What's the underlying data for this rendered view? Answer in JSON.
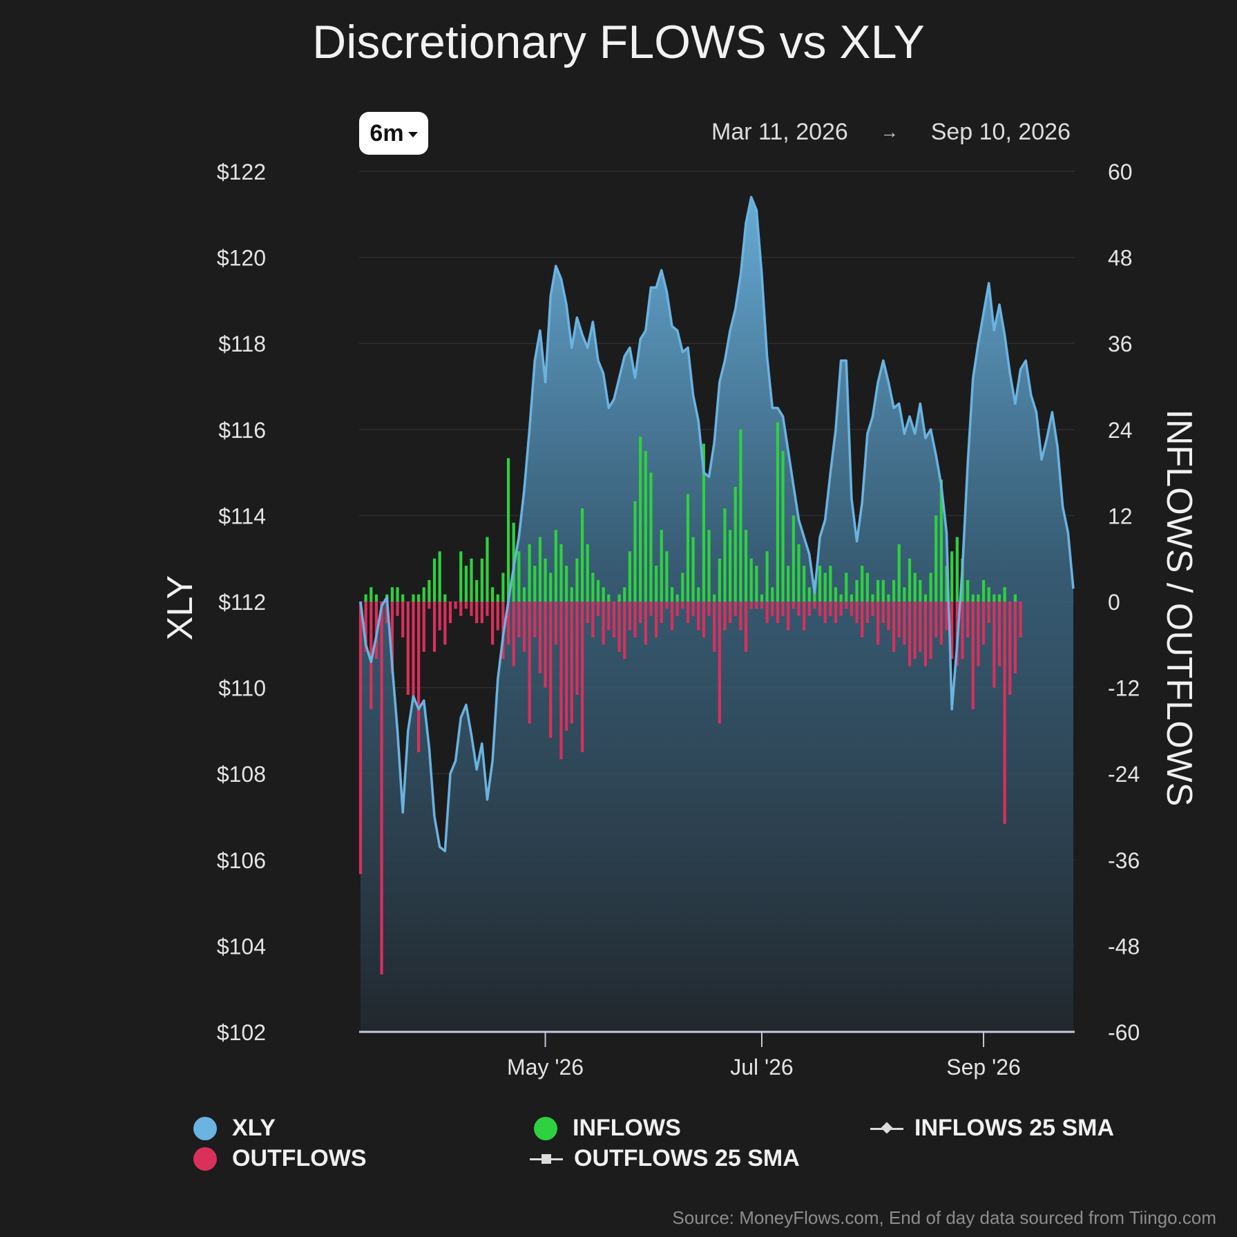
{
  "chart_data": {
    "type": "bar",
    "title": "Discretionary FLOWS vs XLY",
    "range_selector": "6m",
    "date_start": "Mar 11, 2026",
    "date_arrow": "→",
    "date_end": "Sep 10, 2026",
    "y_left_label": "XLY",
    "y_right_label": "INFLOWS / OUTFLOWS",
    "y_left_lim": [
      102,
      122
    ],
    "y_right_lim": [
      -60,
      60
    ],
    "y_left_ticks": [
      "$122",
      "$120",
      "$118",
      "$116",
      "$114",
      "$112",
      "$110",
      "$108",
      "$106",
      "$104",
      "$102"
    ],
    "y_right_ticks": [
      "60",
      "48",
      "36",
      "24",
      "12",
      "0",
      "-12",
      "-24",
      "-36",
      "-48",
      "-60"
    ],
    "x_ticks": [
      {
        "label": "May '26",
        "index": 35
      },
      {
        "label": "Jul '26",
        "index": 76
      },
      {
        "label": "Sep '26",
        "index": 118
      }
    ],
    "grid": true,
    "legend_position": "bottom",
    "colors": {
      "xly": "#6bb3e0",
      "inflows": "#2ed13f",
      "outflows": "#d9305c",
      "sma": "#dcdcdc"
    },
    "legend": [
      {
        "label": "XLY",
        "marker": "dot",
        "color": "#6bb3e0"
      },
      {
        "label": "OUTFLOWS",
        "marker": "dot",
        "color": "#d9305c"
      },
      {
        "label": "INFLOWS",
        "marker": "dot",
        "color": "#2ed13f"
      },
      {
        "label": "OUTFLOWS 25 SMA",
        "marker": "square-line",
        "color": "#dcdcdc"
      },
      {
        "label": "INFLOWS 25 SMA",
        "marker": "diamond-line",
        "color": "#dcdcdc"
      }
    ],
    "series": [
      {
        "name": "XLY",
        "values": [
          112.0,
          111.0,
          110.6,
          111.2,
          111.9,
          112.1,
          110.5,
          109.0,
          107.1,
          109.0,
          109.8,
          109.5,
          109.7,
          108.6,
          107.0,
          106.3,
          106.2,
          108.0,
          108.3,
          109.3,
          109.6,
          108.9,
          108.1,
          108.7,
          107.4,
          108.3,
          110.2,
          111.2,
          112.0,
          112.8,
          113.5,
          114.6,
          116.0,
          117.6,
          118.3,
          117.1,
          119.1,
          119.8,
          119.5,
          118.9,
          117.9,
          118.6,
          118.2,
          117.9,
          118.5,
          117.6,
          117.3,
          116.5,
          116.7,
          117.2,
          117.7,
          117.9,
          117.2,
          118.1,
          118.3,
          119.3,
          119.3,
          119.7,
          119.2,
          118.4,
          118.3,
          117.8,
          117.9,
          116.8,
          116.2,
          115.0,
          114.9,
          115.7,
          117.1,
          117.6,
          118.3,
          118.8,
          119.6,
          120.8,
          121.4,
          121.1,
          119.6,
          117.7,
          116.5,
          116.5,
          116.3,
          115.5,
          114.7,
          113.9,
          113.5,
          113.1,
          112.2,
          113.5,
          113.9,
          115.0,
          116.0,
          117.6,
          117.6,
          114.4,
          113.4,
          114.3,
          115.9,
          116.3,
          117.1,
          117.6,
          117.1,
          116.5,
          116.6,
          115.9,
          116.3,
          115.9,
          116.6,
          115.8,
          116.0,
          115.4,
          114.7,
          113.6,
          109.5,
          111.0,
          112.8,
          115.2,
          117.2,
          118.0,
          118.7,
          119.4,
          118.3,
          118.9,
          118.2,
          117.3,
          116.6,
          117.4,
          117.6,
          116.8,
          116.4,
          115.3,
          115.8,
          116.4,
          115.6,
          114.2,
          113.6,
          112.3
        ]
      },
      {
        "name": "INFLOWS",
        "values": [
          0,
          1,
          2,
          1,
          0,
          1,
          2,
          2,
          1,
          0,
          1,
          1,
          2,
          3,
          6,
          7,
          1,
          0,
          0,
          7,
          5,
          6,
          3,
          6,
          9,
          2,
          1,
          4,
          20,
          11,
          7,
          2,
          8,
          5,
          9,
          6,
          4,
          10,
          8,
          5,
          2,
          6,
          13,
          8,
          4,
          3,
          2,
          1,
          0,
          1,
          2,
          7,
          14,
          23,
          21,
          18,
          5,
          10,
          7,
          2,
          1,
          4,
          15,
          9,
          2,
          22,
          10,
          1,
          6,
          13,
          10,
          16,
          24,
          10,
          6,
          5,
          1,
          7,
          2,
          25,
          21,
          5,
          12,
          8,
          5,
          2,
          3,
          5,
          4,
          5,
          2,
          1,
          4,
          1,
          3,
          5,
          4,
          1,
          3,
          3,
          1,
          3,
          8,
          2,
          6,
          4,
          3,
          1,
          4,
          12,
          17,
          5,
          7,
          9,
          6,
          3,
          1,
          1,
          3,
          2,
          1,
          1,
          2,
          0,
          1
        ]
      },
      {
        "name": "OUTFLOWS",
        "values": [
          -38,
          -7,
          -15,
          -8,
          -52,
          -3,
          -10,
          -2,
          -5,
          -13,
          -14,
          -21,
          -7,
          -1,
          -7,
          -4,
          -6,
          -3,
          -1,
          -2,
          -1,
          -2,
          -3,
          -3,
          -2,
          -6,
          -4,
          -8,
          -6,
          -9,
          -5,
          -7,
          -17,
          -5,
          -10,
          -12,
          -19,
          -6,
          -22,
          -18,
          -17,
          -13,
          -21,
          -3,
          -5,
          -2,
          -6,
          -4,
          -5,
          -7,
          -8,
          -4,
          -5,
          -3,
          -6,
          -2,
          -5,
          -3,
          -1,
          -4,
          -2,
          -1,
          -3,
          -2,
          -4,
          -5,
          -2,
          -7,
          -17,
          -4,
          -3,
          -2,
          -4,
          -7,
          -1,
          -1,
          -1,
          -3,
          -2,
          -3,
          -2,
          -4,
          -1,
          -2,
          -4,
          -2,
          -1,
          -2,
          -3,
          -2,
          -3,
          -2,
          -1,
          -2,
          -3,
          -5,
          -3,
          -2,
          -6,
          -3,
          -4,
          -7,
          -5,
          -6,
          -9,
          -8,
          -7,
          -9,
          -8,
          -5,
          -6,
          -4,
          -8,
          -9,
          -8,
          -5,
          -15,
          -9,
          -6,
          -3,
          -12,
          -9,
          -31,
          -13,
          -10,
          -5
        ]
      }
    ],
    "source": "Source: MoneyFlows.com, End of day data sourced from Tiingo.com"
  }
}
